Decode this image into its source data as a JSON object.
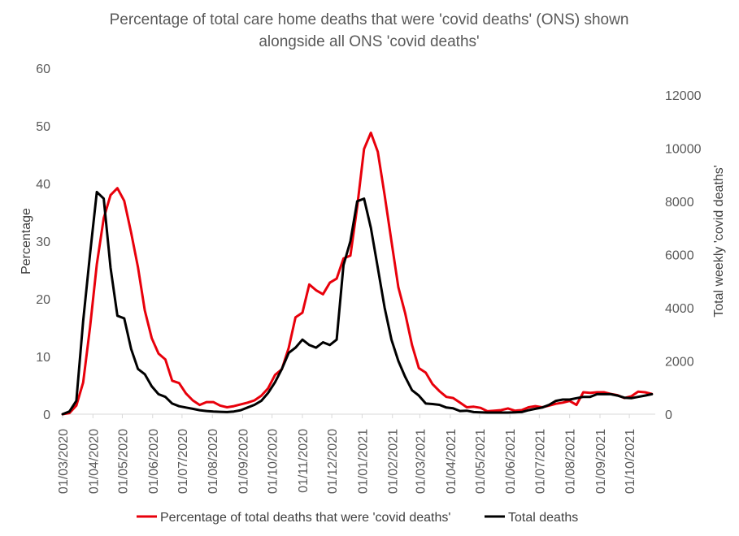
{
  "chart_data": {
    "type": "line",
    "title_lines": [
      "Percentage of total care home deaths that were 'covid deaths' (ONS) shown",
      "alongside all ONS 'covid deaths'"
    ],
    "ylabel_left": "Percentage",
    "ylabel_right": "Total weekly 'covid deaths'",
    "xlabel": "",
    "ylim_left": [
      0,
      60
    ],
    "yticks_left": [
      "0",
      "10",
      "20",
      "30",
      "40",
      "50",
      "60"
    ],
    "ylim_right": [
      0,
      13000
    ],
    "yticks_right": [
      "0",
      "2000",
      "4000",
      "6000",
      "8000",
      "10000",
      "12000"
    ],
    "x_dates": [
      "01/03/2020",
      "01/04/2020",
      "01/05/2020",
      "01/06/2020",
      "01/07/2020",
      "01/08/2020",
      "01/09/2020",
      "01/10/2020",
      "01/11/2020",
      "01/12/2020",
      "01/01/2021",
      "01/02/2021",
      "01/03/2021",
      "01/04/2021",
      "01/05/2021",
      "01/06/2021",
      "01/07/2021",
      "01/08/2021",
      "01/09/2021",
      "01/10/2021"
    ],
    "x_range_weeks": [
      0,
      86.5
    ],
    "grid": false,
    "legend_position": "bottom",
    "series": [
      {
        "name": "Percentage of total deaths that were 'covid deaths'",
        "color": "#e8000b",
        "axis": "left",
        "weeks": [
          0,
          1,
          2,
          3,
          4,
          5,
          6,
          7,
          8,
          9,
          10,
          11,
          12,
          13,
          14,
          15,
          16,
          17,
          18,
          19,
          20,
          21,
          22,
          23,
          24,
          25,
          26,
          27,
          28,
          29,
          30,
          31,
          32,
          33,
          34,
          35,
          36,
          37,
          38,
          39,
          40,
          41,
          42,
          43,
          44,
          45,
          46,
          47,
          48,
          49,
          50,
          51,
          52,
          53,
          54,
          55,
          56,
          57,
          58,
          59,
          60,
          61,
          62,
          63,
          64,
          65,
          66,
          67,
          68,
          69,
          70,
          71,
          72,
          73,
          74,
          75,
          76,
          77,
          78,
          79,
          80,
          81,
          82,
          83,
          84,
          85,
          86
        ],
        "values": [
          0,
          0.2,
          1.5,
          5.5,
          15,
          26,
          34,
          38,
          39.2,
          37,
          31.5,
          25.5,
          18,
          13.2,
          10.5,
          9.5,
          5.8,
          5.4,
          3.6,
          2.4,
          1.6,
          2.1,
          2.1,
          1.5,
          1.2,
          1.4,
          1.7,
          2.0,
          2.4,
          3.2,
          4.5,
          6.8,
          7.8,
          11.5,
          16.8,
          17.6,
          22.5,
          21.5,
          20.8,
          22.8,
          23.5,
          27,
          27.5,
          36,
          46,
          48.8,
          45.5,
          38,
          30,
          22,
          17.5,
          12,
          8,
          7.2,
          5.2,
          4,
          3,
          2.8,
          2,
          1.2,
          1.3,
          1.1,
          0.5,
          0.6,
          0.7,
          1.0,
          0.6,
          0.7,
          1.2,
          1.4,
          1.2,
          1.5,
          1.8,
          2.0,
          2.3,
          1.6,
          3.8,
          3.7,
          3.8,
          3.8,
          3.5,
          3.3,
          2.8,
          3.1,
          3.9,
          3.8,
          3.5
        ]
      },
      {
        "name": "Total deaths",
        "color": "#000000",
        "axis": "right",
        "weeks": [
          0,
          1,
          2,
          3,
          4,
          5,
          6,
          7,
          8,
          9,
          10,
          11,
          12,
          13,
          14,
          15,
          16,
          17,
          18,
          19,
          20,
          21,
          22,
          23,
          24,
          25,
          26,
          27,
          28,
          29,
          30,
          31,
          32,
          33,
          34,
          35,
          36,
          37,
          38,
          39,
          40,
          41,
          42,
          43,
          44,
          45,
          46,
          47,
          48,
          49,
          50,
          51,
          52,
          53,
          54,
          55,
          56,
          57,
          58,
          59,
          60,
          61,
          62,
          63,
          64,
          65,
          66,
          67,
          68,
          69,
          70,
          71,
          72,
          73,
          74,
          75,
          76,
          77,
          78,
          79,
          80,
          81,
          82,
          83,
          84,
          85,
          86
        ],
        "values": [
          0,
          100,
          500,
          3500,
          6000,
          8350,
          8100,
          5500,
          3700,
          3600,
          2450,
          1700,
          1500,
          1050,
          750,
          650,
          400,
          300,
          250,
          200,
          150,
          120,
          100,
          90,
          80,
          100,
          150,
          250,
          350,
          500,
          800,
          1200,
          1700,
          2300,
          2500,
          2800,
          2600,
          2500,
          2700,
          2600,
          2800,
          5600,
          6500,
          8000,
          8100,
          7000,
          5500,
          4000,
          2800,
          2000,
          1400,
          900,
          700,
          400,
          380,
          350,
          250,
          220,
          120,
          130,
          80,
          70,
          60,
          60,
          60,
          60,
          70,
          80,
          150,
          200,
          250,
          350,
          500,
          550,
          550,
          600,
          650,
          650,
          750,
          750,
          750,
          700,
          620,
          600,
          650,
          700,
          750
        ]
      }
    ]
  }
}
